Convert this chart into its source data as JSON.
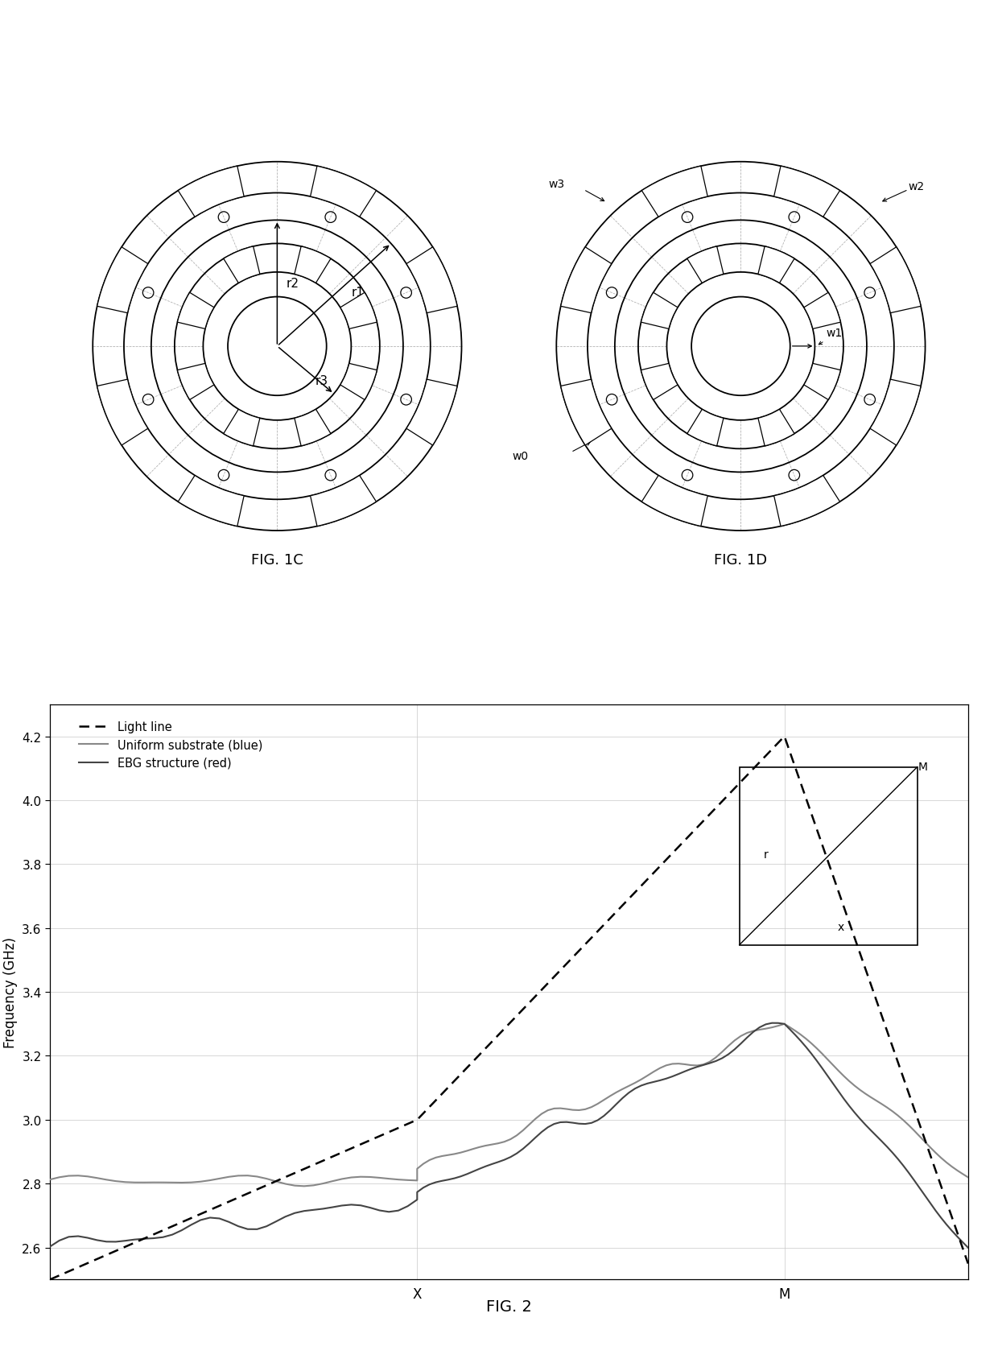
{
  "fig_width": 12.4,
  "fig_height": 16.99,
  "bg_color": "#ffffff",
  "fig1c_label": "FIG. 1C",
  "fig1d_label": "FIG. 1D",
  "fig2_label": "FIG. 2",
  "fig2_ylabel": "Frequency (GHz)",
  "fig2_ylim": [
    2.5,
    4.3
  ],
  "fig2_yticks": [
    2.6,
    2.8,
    3.0,
    3.2,
    3.4,
    3.6,
    3.8,
    4.0,
    4.2
  ],
  "legend_items": [
    "Light line",
    "Uniform substrate (blue)",
    "EBG structure (red)"
  ],
  "light_line_color": "#000000",
  "uniform_substrate_color": "#888888",
  "ebg_color": "#555555",
  "r1_label": "r1",
  "r2_label": "r2",
  "r3_label": "r3",
  "w0_label": "w0",
  "w1_label": "w1",
  "w2_label": "w2",
  "w3_label": "w3",
  "x_tick_label": "X",
  "m_tick_label": "M",
  "R_outer": 1.42,
  "R_ring_outer_outer": 1.18,
  "R_ring_outer_inner": 0.97,
  "R_ring_inner_outer": 0.79,
  "R_ring_inner_inner": 0.57,
  "R_center": 0.38,
  "n_slots_outer": 8,
  "slot_aw_outer": 20,
  "n_slots_inner": 8,
  "slot_aw_inner": 18,
  "n_vias": 8,
  "n_radial_dash": 16
}
